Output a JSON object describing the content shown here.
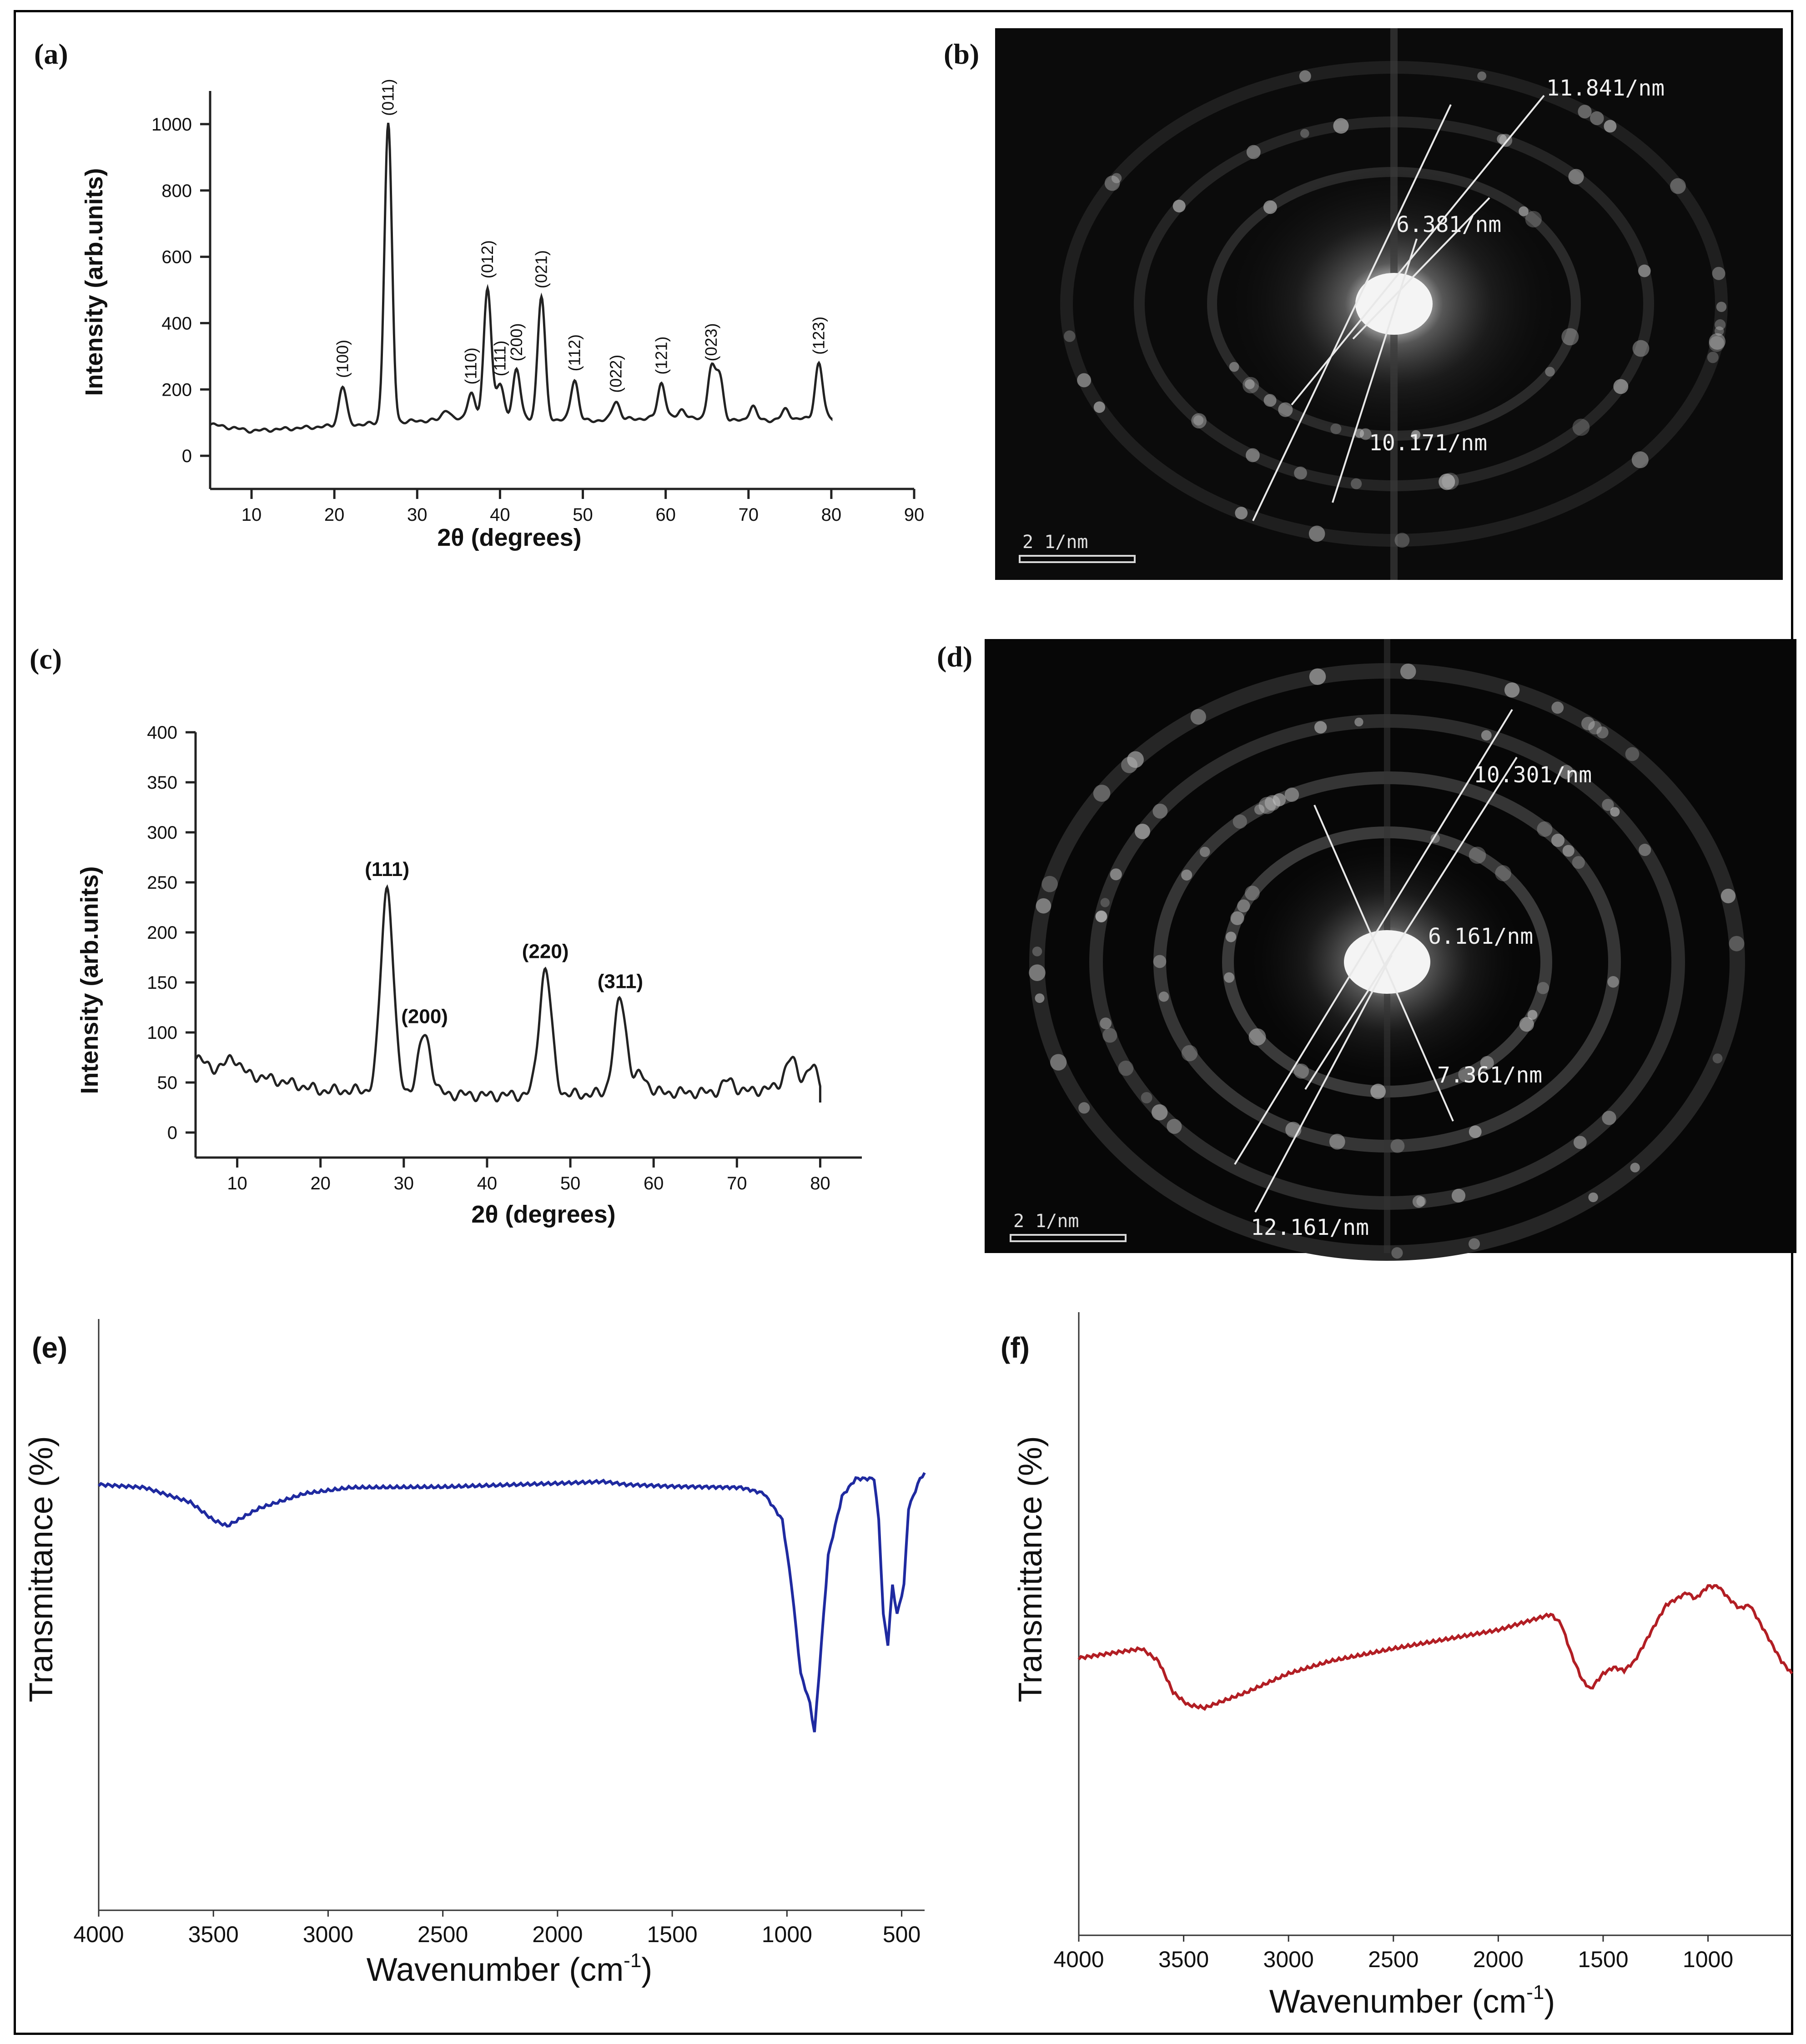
{
  "chart_data": [
    {
      "panel": "(a)",
      "type": "line",
      "xlabel": "2θ (degrees)",
      "ylabel": "Intensity (arb.units)",
      "xlim": [
        5,
        90
      ],
      "ylim": [
        -100,
        1100
      ],
      "xticks": [
        10,
        20,
        30,
        40,
        50,
        60,
        70,
        80,
        90
      ],
      "yticks": [
        0,
        200,
        400,
        600,
        800,
        1000
      ],
      "color": "#111111",
      "baseline": [
        [
          5,
          95
        ],
        [
          10,
          75
        ],
        [
          20,
          90
        ],
        [
          30,
          105
        ],
        [
          40,
          115
        ],
        [
          50,
          105
        ],
        [
          60,
          115
        ],
        [
          70,
          105
        ],
        [
          80,
          115
        ]
      ],
      "peaks": [
        {
          "x": 21.0,
          "y": 210,
          "label": "(100)"
        },
        {
          "x": 26.5,
          "y": 1000,
          "label": "(011)"
        },
        {
          "x": 33.5,
          "y": 140,
          "label": ""
        },
        {
          "x": 36.5,
          "y": 190,
          "label": "(110)"
        },
        {
          "x": 38.5,
          "y": 510,
          "label": "(012)"
        },
        {
          "x": 40.0,
          "y": 215,
          "label": "(111)"
        },
        {
          "x": 42.0,
          "y": 260,
          "label": "(200)"
        },
        {
          "x": 45.0,
          "y": 480,
          "label": "(021)"
        },
        {
          "x": 49.0,
          "y": 230,
          "label": "(112)"
        },
        {
          "x": 54.0,
          "y": 165,
          "label": "(022)"
        },
        {
          "x": 59.5,
          "y": 220,
          "label": "(121)"
        },
        {
          "x": 62.0,
          "y": 140,
          "label": ""
        },
        {
          "x": 65.5,
          "y": 260,
          "label": "(023)"
        },
        {
          "x": 66.5,
          "y": 240,
          "label": ""
        },
        {
          "x": 70.5,
          "y": 150,
          "label": ""
        },
        {
          "x": 74.5,
          "y": 140,
          "label": ""
        },
        {
          "x": 78.5,
          "y": 280,
          "label": "(123)"
        }
      ]
    },
    {
      "panel": "(c)",
      "type": "line",
      "xlabel": "2θ (degrees)",
      "ylabel": "Intensity (arb.units)",
      "xlim": [
        5,
        85
      ],
      "ylim": [
        -25,
        400
      ],
      "xticks": [
        10,
        20,
        30,
        40,
        50,
        60,
        70,
        80
      ],
      "yticks": [
        0,
        50,
        100,
        150,
        200,
        250,
        300,
        350,
        400
      ],
      "color": "#111111",
      "baseline": [
        [
          5,
          75
        ],
        [
          7,
          65
        ],
        [
          12,
          57
        ],
        [
          16,
          50
        ],
        [
          20,
          42
        ],
        [
          25,
          42
        ],
        [
          30,
          40
        ],
        [
          40,
          37
        ],
        [
          50,
          38
        ],
        [
          60,
          40
        ],
        [
          70,
          40
        ],
        [
          75,
          45
        ],
        [
          80,
          40
        ]
      ],
      "peaks": [
        {
          "x": 9.5,
          "y": 75,
          "label": ""
        },
        {
          "x": 28.0,
          "y": 245,
          "label": "(111)"
        },
        {
          "x": 32.5,
          "y": 98,
          "label": "(200)"
        },
        {
          "x": 47.0,
          "y": 163,
          "label": "(220)"
        },
        {
          "x": 56.0,
          "y": 133,
          "label": "(311)"
        },
        {
          "x": 58.5,
          "y": 57,
          "label": ""
        },
        {
          "x": 69.0,
          "y": 52,
          "label": ""
        },
        {
          "x": 76.5,
          "y": 73,
          "label": ""
        },
        {
          "x": 79.0,
          "y": 65,
          "label": ""
        }
      ]
    },
    {
      "panel": "(e)",
      "type": "line",
      "xlabel": "Wavenumber (cm",
      "xlabel_sup": "-1",
      "xlabel_end": ")",
      "ylabel": "Transmittance (%)",
      "xlim": [
        4000,
        400
      ],
      "ylim": [
        0,
        100
      ],
      "xticks": [
        4000,
        3500,
        3000,
        2500,
        2000,
        1500,
        1000,
        500
      ],
      "color": "#1f2aa0",
      "points": [
        [
          4000,
          72
        ],
        [
          3800,
          71.5
        ],
        [
          3600,
          69
        ],
        [
          3500,
          66
        ],
        [
          3440,
          65
        ],
        [
          3300,
          68
        ],
        [
          3100,
          70.5
        ],
        [
          2900,
          71.5
        ],
        [
          2500,
          71.6
        ],
        [
          2000,
          72.2
        ],
        [
          1800,
          72.5
        ],
        [
          1700,
          72
        ],
        [
          1500,
          71.7
        ],
        [
          1200,
          71.5
        ],
        [
          1100,
          70.5
        ],
        [
          1020,
          66
        ],
        [
          980,
          55
        ],
        [
          940,
          40
        ],
        [
          900,
          35
        ],
        [
          880,
          30
        ],
        [
          860,
          40
        ],
        [
          820,
          60
        ],
        [
          760,
          70
        ],
        [
          700,
          73
        ],
        [
          620,
          73
        ],
        [
          600,
          66
        ],
        [
          580,
          50
        ],
        [
          560,
          45
        ],
        [
          540,
          55
        ],
        [
          520,
          50
        ],
        [
          490,
          55
        ],
        [
          470,
          68
        ],
        [
          420,
          73
        ],
        [
          400,
          74
        ]
      ]
    },
    {
      "panel": "(f)",
      "type": "line",
      "xlabel": "Wavenumber (cm",
      "xlabel_sup": "-1",
      "xlabel_end": ")",
      "ylabel": "Transmittance (%)",
      "xlim": [
        4000,
        600
      ],
      "ylim": [
        0,
        100
      ],
      "xticks": [
        4000,
        3500,
        3000,
        2500,
        2000,
        1500,
        1000
      ],
      "color": "#b21e24",
      "points": [
        [
          4000,
          44.5
        ],
        [
          3800,
          45.5
        ],
        [
          3700,
          46
        ],
        [
          3620,
          44
        ],
        [
          3550,
          39
        ],
        [
          3480,
          37
        ],
        [
          3400,
          36.5
        ],
        [
          3200,
          39
        ],
        [
          3000,
          42
        ],
        [
          2800,
          44
        ],
        [
          2500,
          46
        ],
        [
          2000,
          49
        ],
        [
          1750,
          51.5
        ],
        [
          1700,
          50
        ],
        [
          1650,
          45
        ],
        [
          1600,
          41
        ],
        [
          1560,
          39.5
        ],
        [
          1500,
          42
        ],
        [
          1450,
          43
        ],
        [
          1400,
          42.5
        ],
        [
          1350,
          44
        ],
        [
          1300,
          47
        ],
        [
          1200,
          53
        ],
        [
          1100,
          55
        ],
        [
          1060,
          54
        ],
        [
          1000,
          56
        ],
        [
          950,
          56
        ],
        [
          900,
          54
        ],
        [
          850,
          52.5
        ],
        [
          800,
          53
        ],
        [
          750,
          50
        ],
        [
          700,
          47
        ],
        [
          650,
          44
        ],
        [
          600,
          42
        ]
      ]
    }
  ],
  "saed": [
    {
      "panel": "(b)",
      "labels": [
        "11.841/nm",
        "6.381/nm",
        "10.171/nm"
      ],
      "scale_bar": "2 1/nm"
    },
    {
      "panel": "(d)",
      "labels": [
        "10.301/nm",
        "6.161/nm",
        "7.361/nm",
        "12.161/nm"
      ],
      "scale_bar": "2 1/nm"
    }
  ]
}
